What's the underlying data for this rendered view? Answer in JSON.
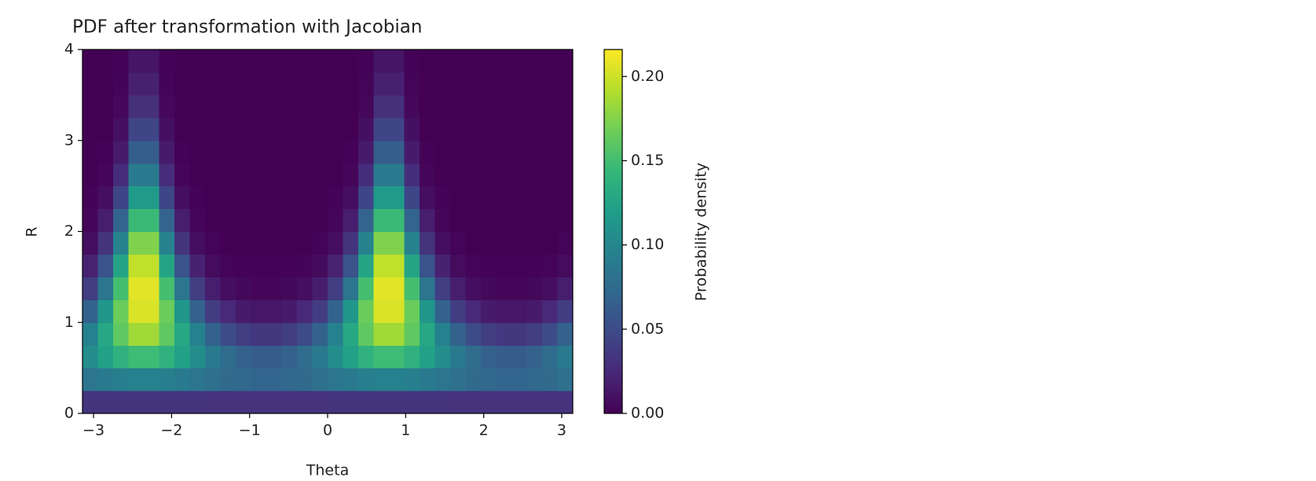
{
  "chart_data": {
    "type": "heatmap",
    "title": "PDF after transformation with Jacobian",
    "x_label": "Theta",
    "y_label": "R",
    "colorbar_label": "Probability density",
    "xlim": [
      -3.14159,
      3.14159
    ],
    "ylim": [
      0,
      4
    ],
    "xticks": [
      {
        "value": -3,
        "label": "−3"
      },
      {
        "value": -2,
        "label": "−2"
      },
      {
        "value": -1,
        "label": "−1"
      },
      0,
      1,
      2,
      3
    ],
    "yticks": [
      0,
      1,
      2,
      3,
      4
    ],
    "zlim": [
      0,
      0.216
    ],
    "zticks": [
      {
        "value": 0,
        "label": "0.00"
      },
      {
        "value": 0.05,
        "label": "0.05"
      },
      {
        "value": 0.1,
        "label": "0.10"
      },
      {
        "value": 0.15,
        "label": "0.15"
      },
      {
        "value": 0.2,
        "label": "0.20"
      }
    ],
    "colormap": [
      "#440154",
      "#482878",
      "#3e4989",
      "#31688e",
      "#26828e",
      "#1f9e89",
      "#35b779",
      "#6ece58",
      "#b5de2b",
      "#fde725"
    ],
    "z": [
      [
        0.033,
        0.033,
        0.033,
        0.033,
        0.033,
        0.033,
        0.033,
        0.033,
        0.032,
        0.032,
        0.032,
        0.032,
        0.032,
        0.032,
        0.032,
        0.032,
        0.033,
        0.033,
        0.033,
        0.033,
        0.033,
        0.033,
        0.033,
        0.033,
        0.032,
        0.032,
        0.032,
        0.032,
        0.032,
        0.032,
        0.032,
        0.032
      ],
      [
        0.084,
        0.089,
        0.093,
        0.095,
        0.095,
        0.093,
        0.089,
        0.084,
        0.079,
        0.075,
        0.072,
        0.07,
        0.07,
        0.072,
        0.075,
        0.079,
        0.084,
        0.089,
        0.093,
        0.095,
        0.095,
        0.093,
        0.089,
        0.084,
        0.079,
        0.075,
        0.072,
        0.07,
        0.07,
        0.072,
        0.075,
        0.079
      ],
      [
        0.105,
        0.123,
        0.138,
        0.148,
        0.148,
        0.138,
        0.123,
        0.105,
        0.089,
        0.076,
        0.067,
        0.063,
        0.063,
        0.067,
        0.076,
        0.089,
        0.105,
        0.123,
        0.138,
        0.148,
        0.148,
        0.138,
        0.123,
        0.105,
        0.089,
        0.076,
        0.067,
        0.063,
        0.063,
        0.067,
        0.076,
        0.089
      ],
      [
        0.095,
        0.129,
        0.162,
        0.185,
        0.185,
        0.162,
        0.129,
        0.095,
        0.068,
        0.05,
        0.04,
        0.035,
        0.035,
        0.04,
        0.05,
        0.068,
        0.095,
        0.129,
        0.162,
        0.185,
        0.185,
        0.162,
        0.129,
        0.095,
        0.068,
        0.05,
        0.04,
        0.035,
        0.035,
        0.04,
        0.05,
        0.068
      ],
      [
        0.068,
        0.113,
        0.166,
        0.204,
        0.204,
        0.166,
        0.113,
        0.068,
        0.039,
        0.024,
        0.016,
        0.013,
        0.013,
        0.016,
        0.024,
        0.039,
        0.068,
        0.113,
        0.166,
        0.204,
        0.204,
        0.166,
        0.113,
        0.068,
        0.039,
        0.024,
        0.016,
        0.013,
        0.013,
        0.016,
        0.024,
        0.039
      ],
      [
        0.04,
        0.085,
        0.151,
        0.207,
        0.207,
        0.151,
        0.085,
        0.04,
        0.018,
        0.008,
        0.005,
        0.003,
        0.003,
        0.005,
        0.008,
        0.018,
        0.04,
        0.085,
        0.151,
        0.207,
        0.207,
        0.151,
        0.085,
        0.04,
        0.018,
        0.008,
        0.005,
        0.003,
        0.003,
        0.005,
        0.008,
        0.018
      ],
      [
        0.02,
        0.056,
        0.126,
        0.196,
        0.196,
        0.126,
        0.056,
        0.02,
        0.006,
        0.002,
        0.001,
        0.001,
        0.001,
        0.001,
        0.002,
        0.006,
        0.02,
        0.056,
        0.126,
        0.196,
        0.196,
        0.126,
        0.056,
        0.02,
        0.006,
        0.002,
        0.001,
        0.001,
        0.001,
        0.001,
        0.002,
        0.006
      ],
      [
        0.008,
        0.033,
        0.097,
        0.174,
        0.174,
        0.097,
        0.033,
        0.008,
        0.002,
        0,
        0,
        0,
        0,
        0,
        0,
        0.002,
        0.008,
        0.033,
        0.097,
        0.174,
        0.174,
        0.097,
        0.033,
        0.008,
        0.002,
        0,
        0,
        0,
        0,
        0,
        0,
        0.002
      ],
      [
        0.003,
        0.017,
        0.069,
        0.146,
        0.146,
        0.069,
        0.017,
        0.003,
        0,
        0,
        0,
        0,
        0,
        0,
        0,
        0,
        0.003,
        0.017,
        0.069,
        0.146,
        0.146,
        0.069,
        0.017,
        0.003,
        0,
        0,
        0,
        0,
        0,
        0,
        0,
        0
      ],
      [
        0.001,
        0.008,
        0.046,
        0.117,
        0.117,
        0.046,
        0.008,
        0.001,
        0,
        0,
        0,
        0,
        0,
        0,
        0,
        0,
        0.001,
        0.008,
        0.046,
        0.117,
        0.117,
        0.046,
        0.008,
        0.001,
        0,
        0,
        0,
        0,
        0,
        0,
        0,
        0
      ],
      [
        0,
        0.003,
        0.028,
        0.089,
        0.089,
        0.028,
        0.003,
        0,
        0,
        0,
        0,
        0,
        0,
        0,
        0,
        0,
        0,
        0.003,
        0.028,
        0.089,
        0.089,
        0.028,
        0.003,
        0,
        0,
        0,
        0,
        0,
        0,
        0,
        0,
        0
      ],
      [
        0,
        0.001,
        0.016,
        0.064,
        0.064,
        0.016,
        0.001,
        0,
        0,
        0,
        0,
        0,
        0,
        0,
        0,
        0,
        0,
        0.001,
        0.016,
        0.064,
        0.064,
        0.016,
        0.001,
        0,
        0,
        0,
        0,
        0,
        0,
        0,
        0,
        0
      ],
      [
        0,
        0,
        0.009,
        0.045,
        0.045,
        0.009,
        0,
        0,
        0,
        0,
        0,
        0,
        0,
        0,
        0,
        0,
        0,
        0,
        0.009,
        0.045,
        0.045,
        0.009,
        0,
        0,
        0,
        0,
        0,
        0,
        0,
        0,
        0,
        0
      ],
      [
        0,
        0,
        0.004,
        0.03,
        0.03,
        0.004,
        0,
        0,
        0,
        0,
        0,
        0,
        0,
        0,
        0,
        0,
        0,
        0,
        0.004,
        0.03,
        0.03,
        0.004,
        0,
        0,
        0,
        0,
        0,
        0,
        0,
        0,
        0,
        0
      ],
      [
        0,
        0,
        0.002,
        0.019,
        0.019,
        0.002,
        0,
        0,
        0,
        0,
        0,
        0,
        0,
        0,
        0,
        0,
        0,
        0,
        0.002,
        0.019,
        0.019,
        0.002,
        0,
        0,
        0,
        0,
        0,
        0,
        0,
        0,
        0,
        0
      ],
      [
        0,
        0,
        0.001,
        0.012,
        0.012,
        0.001,
        0,
        0,
        0,
        0,
        0,
        0,
        0,
        0,
        0,
        0,
        0,
        0,
        0.001,
        0.012,
        0.012,
        0.001,
        0,
        0,
        0,
        0,
        0,
        0,
        0,
        0,
        0,
        0
      ]
    ]
  }
}
